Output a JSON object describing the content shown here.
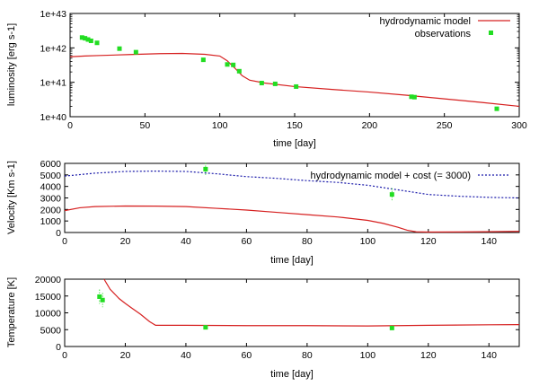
{
  "colors": {
    "model": "#d62020",
    "observation": "#22dd22",
    "shifted_model": "#1a1aaa",
    "frame": "#000000"
  },
  "chart_data": [
    {
      "type": "line",
      "xlabel": "time [day]",
      "ylabel": "luminosity [erg s-1]",
      "xlim": [
        0,
        300
      ],
      "ylim_log10": [
        40,
        43
      ],
      "x_ticks": [
        0,
        50,
        100,
        150,
        200,
        250,
        300
      ],
      "x_tick_labels": [
        "0",
        "50",
        "100",
        "150",
        "200",
        "250",
        "300"
      ],
      "y_ticks_log10": [
        40,
        41,
        42,
        43
      ],
      "y_tick_labels": [
        "1e+40",
        "1e+41",
        "1e+42",
        "1e+43"
      ],
      "legend": [
        "hydrodynamic model",
        "observations"
      ],
      "series": [
        {
          "name": "hydrodynamic model",
          "x": [
            0,
            10,
            20,
            40,
            60,
            75,
            90,
            100,
            105,
            110,
            115,
            120,
            130,
            150,
            175,
            200,
            225,
            250,
            275,
            300
          ],
          "y": [
            5.5e+41,
            5.8e+41,
            6e+41,
            6.4e+41,
            6.8e+41,
            6.9e+41,
            6.5e+41,
            5.8e+41,
            4.2e+41,
            2.6e+41,
            1.55e+41,
            1.15e+41,
            9.5e+40,
            7.5e+40,
            6.2e+40,
            5.2e+40,
            4.2e+40,
            3.3e+40,
            2.6e+40,
            2e+40
          ]
        },
        {
          "name": "observations",
          "x": [
            8,
            10,
            12,
            14,
            18,
            33,
            44,
            89,
            105,
            109,
            113,
            128,
            137,
            151,
            228,
            230,
            285
          ],
          "y": [
            2e+42,
            1.9e+42,
            1.75e+42,
            1.6e+42,
            1.4e+42,
            9.5e+41,
            7.5e+41,
            4.5e+41,
            3.3e+41,
            3.2e+41,
            2.1e+41,
            9.5e+40,
            9e+40,
            7.5e+40,
            3.8e+40,
            3.7e+40,
            1.7e+40
          ]
        }
      ]
    },
    {
      "type": "line",
      "xlabel": "time [day]",
      "ylabel": "Velocity [Km s-1]",
      "xlim": [
        0,
        150
      ],
      "ylim": [
        0,
        6000
      ],
      "x_ticks": [
        0,
        20,
        40,
        60,
        80,
        100,
        120,
        140
      ],
      "y_ticks": [
        0,
        1000,
        2000,
        3000,
        4000,
        5000,
        6000
      ],
      "legend": [
        "hydrodynamic model + cost (= 3000)"
      ],
      "series": [
        {
          "name": "hydrodynamic model + cost (= 3000)",
          "x": [
            0,
            10,
            20,
            30,
            40,
            50,
            60,
            70,
            80,
            90,
            100,
            110,
            120,
            130,
            140,
            150
          ],
          "y": [
            4900,
            5150,
            5300,
            5330,
            5300,
            5100,
            4850,
            4700,
            4500,
            4350,
            4100,
            3700,
            3300,
            3150,
            3050,
            3000
          ]
        },
        {
          "name": "hydrodynamic model",
          "x": [
            0,
            5,
            10,
            20,
            30,
            40,
            50,
            60,
            70,
            80,
            90,
            100,
            105,
            110,
            113,
            116,
            120,
            130,
            140,
            150
          ],
          "y": [
            1900,
            2150,
            2250,
            2300,
            2290,
            2250,
            2100,
            1950,
            1750,
            1550,
            1350,
            1050,
            800,
            450,
            200,
            60,
            40,
            50,
            70,
            100
          ]
        },
        {
          "name": "observations",
          "x": [
            46.5,
            108
          ],
          "y": [
            5500,
            3300
          ]
        }
      ]
    },
    {
      "type": "line",
      "xlabel": "time [day]",
      "ylabel": "Temperature [K]",
      "xlim": [
        0,
        150
      ],
      "ylim": [
        0,
        20000
      ],
      "x_ticks": [
        0,
        20,
        40,
        60,
        80,
        100,
        120,
        140
      ],
      "y_ticks": [
        0,
        5000,
        10000,
        15000,
        20000
      ],
      "series": [
        {
          "name": "hydrodynamic model",
          "x": [
            13,
            15,
            18,
            20,
            22,
            25,
            28,
            30,
            40,
            60,
            80,
            100,
            120,
            140,
            150
          ],
          "y": [
            20000,
            17000,
            14200,
            12800,
            11500,
            9600,
            7400,
            6300,
            6300,
            6200,
            6200,
            6100,
            6300,
            6450,
            6500
          ]
        },
        {
          "name": "observations",
          "x": [
            11.5,
            12.5,
            46.5,
            108
          ],
          "y": [
            14800,
            13800,
            5700,
            5500
          ]
        }
      ]
    }
  ]
}
